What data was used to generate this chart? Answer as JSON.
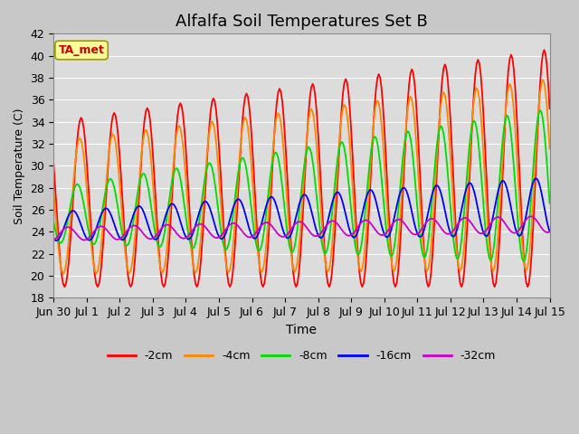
{
  "title": "Alfalfa Soil Temperatures Set B",
  "xlabel": "Time",
  "ylabel": "Soil Temperature (C)",
  "ylim": [
    18,
    42
  ],
  "tick_labels": [
    "Jun 30",
    "Jul 1",
    "Jul 2",
    "Jul 3",
    "Jul 4",
    "Jul 5",
    "Jul 6",
    "Jul 7",
    "Jul 8",
    "Jul 9",
    "Jul 10",
    "Jul 11",
    "Jul 12",
    "Jul 13",
    "Jul 14",
    "Jul 15"
  ],
  "series_colors": {
    "-2cm": "#ff0000",
    "-4cm": "#ff8800",
    "-8cm": "#00dd00",
    "-16cm": "#0000ff",
    "-32cm": "#cc00cc"
  },
  "annotation_text": "TA_met",
  "annotation_color": "#cc0000",
  "annotation_bg": "#ffff99",
  "plot_bg": "#dcdcdc",
  "fig_bg": "#c8c8c8",
  "grid_color": "#ffffff",
  "title_fontsize": 13,
  "axis_fontsize": 9
}
